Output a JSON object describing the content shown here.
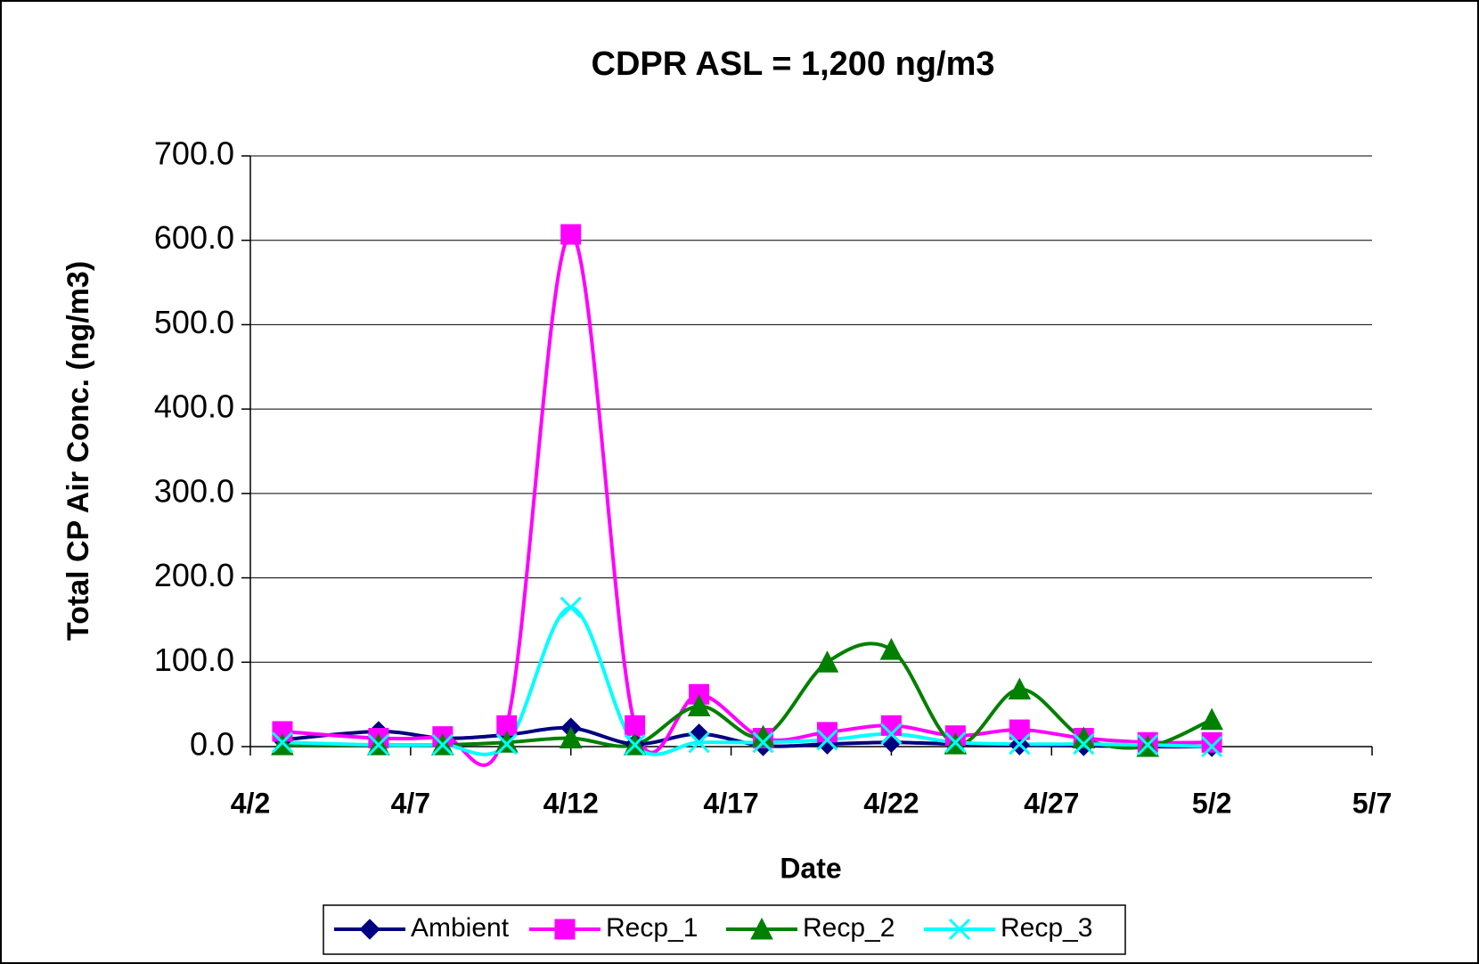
{
  "chart_data": {
    "type": "line",
    "title": "CDPR ASL = 1,200 ng/m3",
    "xlabel": "Date",
    "ylabel": "Total CP Air Conc. (ng/m3)",
    "x": [
      "4/3",
      "4/6",
      "4/8",
      "4/10",
      "4/12",
      "4/14",
      "4/16",
      "4/18",
      "4/20",
      "4/22",
      "4/24",
      "4/26",
      "4/28",
      "4/30",
      "5/2"
    ],
    "series": [
      {
        "name": "Ambient",
        "color": "#000080",
        "marker": "diamond",
        "values": [
          8,
          18,
          10,
          14,
          22,
          3,
          15,
          1,
          3,
          5,
          3,
          2,
          1,
          0,
          0
        ]
      },
      {
        "name": "Recp_1",
        "color": "#ff00ff",
        "marker": "square",
        "values": [
          18,
          10,
          12,
          25,
          607,
          25,
          62,
          10,
          17,
          25,
          13,
          20,
          10,
          5,
          5
        ]
      },
      {
        "name": "Recp_2",
        "color": "#008000",
        "marker": "triangle",
        "values": [
          2,
          2,
          2,
          5,
          10,
          2,
          48,
          12,
          100,
          115,
          3,
          68,
          10,
          0,
          32
        ]
      },
      {
        "name": "Recp_3",
        "color": "#00ffff",
        "marker": "x",
        "values": [
          5,
          2,
          2,
          3,
          165,
          2,
          5,
          5,
          8,
          15,
          5,
          3,
          3,
          2,
          0
        ]
      }
    ],
    "xlim": [
      "4/2",
      "5/7"
    ],
    "xticks": [
      "4/2",
      "4/7",
      "4/12",
      "4/17",
      "4/22",
      "4/27",
      "5/2",
      "5/7"
    ],
    "ylim": [
      0,
      700
    ],
    "yticks": [
      {
        "value": 0,
        "label": "0.0"
      },
      {
        "value": 100,
        "label": "100.0"
      },
      {
        "value": 200,
        "label": "200.0"
      },
      {
        "value": 300,
        "label": "300.0"
      },
      {
        "value": 400,
        "label": "400.0"
      },
      {
        "value": 500,
        "label": "500.0"
      },
      {
        "value": 600,
        "label": "600.0"
      },
      {
        "value": 700,
        "label": "700.0"
      }
    ],
    "grid": true,
    "legend": "bottom"
  }
}
